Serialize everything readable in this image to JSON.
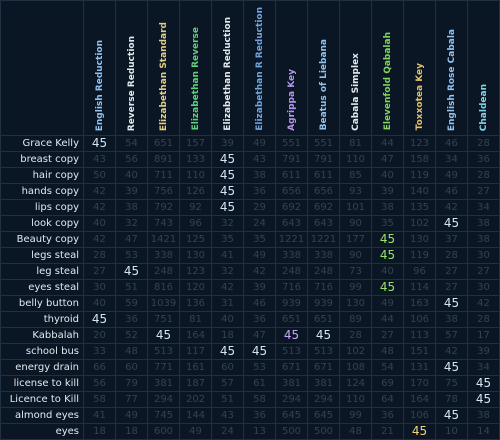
{
  "columns": [
    {
      "label": "English Reduction",
      "color": "#8fc3f0"
    },
    {
      "label": "Reverse Reduction",
      "color": "#e3e9f0"
    },
    {
      "label": "Elizabethan Standard",
      "color": "#e2cd8a"
    },
    {
      "label": "Elizabethan Reverse",
      "color": "#5ed27a"
    },
    {
      "label": "Elizabethan Reduction",
      "color": "#e3e9f0"
    },
    {
      "label": "Elizabethan R Reduction",
      "color": "#6fa6e0"
    },
    {
      "label": "Agrippa Key",
      "color": "#b496f0"
    },
    {
      "label": "Beatus of Liebana",
      "color": "#8fc3f0"
    },
    {
      "label": "Cabala Simplex",
      "color": "#e3e9f0"
    },
    {
      "label": "Elevenfold Qabalah",
      "color": "#7fd65a"
    },
    {
      "label": "Toxxotea Key",
      "color": "#e2c16a"
    },
    {
      "label": "English Rose Cabala",
      "color": "#8fc3f0"
    },
    {
      "label": "Chaldean",
      "color": "#7fd6e8"
    }
  ],
  "hit_colors": {
    "default": "#cfe3f7",
    "green": "#9be26a",
    "purple": "#c8a6ff",
    "gold": "#f2d27a"
  },
  "rows": [
    {
      "word": "Grace Kelly",
      "values": [
        "45",
        "54",
        "651",
        "157",
        "39",
        "49",
        "551",
        "551",
        "81",
        "44",
        "123",
        "46",
        "28"
      ],
      "hits": [
        0
      ]
    },
    {
      "word": "breast copy",
      "values": [
        "43",
        "56",
        "891",
        "133",
        "45",
        "43",
        "791",
        "791",
        "110",
        "47",
        "158",
        "34",
        "36"
      ],
      "hits": [
        4
      ]
    },
    {
      "word": "hair copy",
      "values": [
        "50",
        "40",
        "711",
        "110",
        "45",
        "38",
        "611",
        "611",
        "85",
        "40",
        "119",
        "49",
        "28"
      ],
      "hits": [
        4
      ]
    },
    {
      "word": "hands copy",
      "values": [
        "42",
        "39",
        "756",
        "126",
        "45",
        "36",
        "656",
        "656",
        "93",
        "39",
        "140",
        "46",
        "27"
      ],
      "hits": [
        4
      ]
    },
    {
      "word": "lips copy",
      "values": [
        "42",
        "38",
        "792",
        "92",
        "45",
        "29",
        "692",
        "692",
        "101",
        "38",
        "135",
        "42",
        "34"
      ],
      "hits": [
        4
      ]
    },
    {
      "word": "look copy",
      "values": [
        "40",
        "32",
        "743",
        "96",
        "32",
        "24",
        "643",
        "643",
        "90",
        "35",
        "102",
        "45",
        "38"
      ],
      "hits": [
        11
      ]
    },
    {
      "word": "Beauty copy",
      "values": [
        "42",
        "47",
        "1421",
        "125",
        "35",
        "35",
        "1221",
        "1221",
        "177",
        "45",
        "130",
        "37",
        "38"
      ],
      "hits": [
        9
      ]
    },
    {
      "word": "legs steal",
      "values": [
        "28",
        "53",
        "338",
        "130",
        "41",
        "49",
        "338",
        "338",
        "90",
        "45",
        "119",
        "28",
        "30"
      ],
      "hits": [
        9
      ]
    },
    {
      "word": "leg steal",
      "values": [
        "27",
        "45",
        "248",
        "123",
        "32",
        "42",
        "248",
        "248",
        "73",
        "40",
        "96",
        "27",
        "27"
      ],
      "hits": [
        1
      ]
    },
    {
      "word": "eyes steal",
      "values": [
        "30",
        "51",
        "816",
        "120",
        "42",
        "39",
        "716",
        "716",
        "99",
        "45",
        "114",
        "27",
        "30"
      ],
      "hits": [
        9
      ]
    },
    {
      "word": "belly button",
      "values": [
        "40",
        "59",
        "1039",
        "136",
        "31",
        "46",
        "939",
        "939",
        "130",
        "49",
        "163",
        "45",
        "42"
      ],
      "hits": [
        11
      ]
    },
    {
      "word": "thyroid",
      "values": [
        "45",
        "36",
        "751",
        "81",
        "40",
        "36",
        "651",
        "651",
        "89",
        "44",
        "106",
        "38",
        "28"
      ],
      "hits": [
        0
      ]
    },
    {
      "word": "Kabbalah",
      "values": [
        "20",
        "52",
        "45",
        "164",
        "18",
        "47",
        "45",
        "45",
        "28",
        "27",
        "113",
        "57",
        "17"
      ],
      "hits": [
        2,
        6,
        7
      ]
    },
    {
      "word": "school bus",
      "values": [
        "33",
        "48",
        "513",
        "117",
        "45",
        "45",
        "513",
        "513",
        "102",
        "48",
        "151",
        "42",
        "39"
      ],
      "hits": [
        4,
        5
      ]
    },
    {
      "word": "energy drain",
      "values": [
        "66",
        "60",
        "771",
        "161",
        "60",
        "53",
        "671",
        "671",
        "108",
        "54",
        "131",
        "45",
        "34"
      ],
      "hits": [
        11
      ]
    },
    {
      "word": "license to kill",
      "values": [
        "56",
        "79",
        "381",
        "187",
        "57",
        "61",
        "381",
        "381",
        "124",
        "69",
        "170",
        "75",
        "45"
      ],
      "hits": [
        12
      ]
    },
    {
      "word": "Licence to Kill",
      "values": [
        "58",
        "77",
        "294",
        "202",
        "51",
        "58",
        "294",
        "294",
        "110",
        "64",
        "164",
        "78",
        "45"
      ],
      "hits": [
        12
      ]
    },
    {
      "word": "almond eyes",
      "values": [
        "41",
        "49",
        "745",
        "144",
        "43",
        "36",
        "645",
        "645",
        "99",
        "36",
        "106",
        "45",
        "38"
      ],
      "hits": [
        11
      ]
    },
    {
      "word": "eyes",
      "values": [
        "18",
        "18",
        "600",
        "49",
        "24",
        "13",
        "500",
        "500",
        "48",
        "21",
        "45",
        "10",
        "14"
      ],
      "hits": [
        10
      ]
    }
  ]
}
